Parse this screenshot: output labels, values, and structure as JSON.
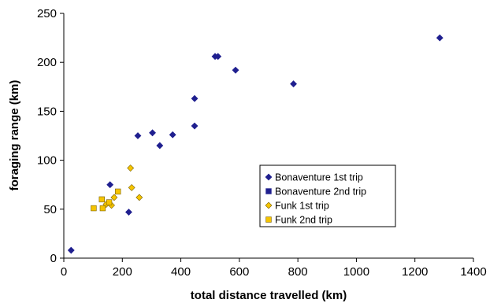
{
  "chart_data": {
    "type": "scatter",
    "title": "",
    "xlabel": "total distance travelled (km)",
    "ylabel": "foraging range (km)",
    "xlim": [
      0,
      1400
    ],
    "ylim": [
      0,
      250
    ],
    "xticks": [
      0,
      200,
      400,
      600,
      800,
      1000,
      1200,
      1400
    ],
    "yticks": [
      0,
      50,
      100,
      150,
      200,
      250
    ],
    "grid": false,
    "legend_position": "center-right",
    "series": [
      {
        "name": "Bonaventure 1st trip",
        "marker": "diamond",
        "color": "#1f1f8f",
        "points": [
          [
            25,
            8
          ],
          [
            158,
            75
          ],
          [
            222,
            47
          ],
          [
            253,
            125
          ],
          [
            303,
            128
          ],
          [
            328,
            115
          ],
          [
            372,
            126
          ],
          [
            447,
            163
          ],
          [
            447,
            135
          ],
          [
            517,
            206
          ],
          [
            527,
            206
          ],
          [
            587,
            192
          ],
          [
            785,
            178
          ],
          [
            1285,
            225
          ]
        ]
      },
      {
        "name": "Bonaventure 2nd trip",
        "marker": "square",
        "color": "#1f1f8f",
        "points": []
      },
      {
        "name": "Funk 1st trip",
        "marker": "diamond",
        "color": "#f5c400",
        "points": [
          [
            145,
            55
          ],
          [
            163,
            54
          ],
          [
            172,
            62
          ],
          [
            228,
            92
          ],
          [
            232,
            72
          ],
          [
            258,
            62
          ]
        ]
      },
      {
        "name": "Funk 2nd trip",
        "marker": "square",
        "color": "#f5c400",
        "points": [
          [
            102,
            51
          ],
          [
            130,
            60
          ],
          [
            133,
            51
          ],
          [
            155,
            57
          ],
          [
            185,
            68
          ]
        ]
      }
    ]
  }
}
